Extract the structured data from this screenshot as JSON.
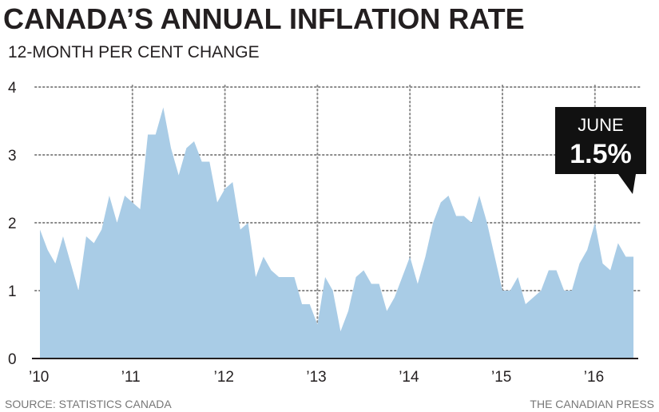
{
  "title": "CANADA’S ANNUAL INFLATION RATE",
  "subtitle": "12-MONTH PER CENT CHANGE",
  "footer": {
    "source": "SOURCE: STATISTICS CANADA",
    "credit": "THE CANADIAN PRESS"
  },
  "colors": {
    "area": "#a9cce6",
    "text": "#231f20",
    "callout_bg": "#111111",
    "callout_text": "#ffffff",
    "grid": "#8a8a8a"
  },
  "callout": {
    "month": "JUNE",
    "value": "1.5%"
  },
  "chart_data": {
    "type": "area",
    "title": "CANADA’S ANNUAL INFLATION RATE",
    "subtitle": "12-MONTH PER CENT CHANGE",
    "xlabel": "",
    "ylabel": "",
    "ylim": [
      0,
      4
    ],
    "yticks": [
      "0",
      "1",
      "2",
      "3",
      "4"
    ],
    "xticks": [
      "’10",
      "’11",
      "’12",
      "’13",
      "’14",
      "’15",
      "’16"
    ],
    "grid": true,
    "start": "2010-01",
    "end": "2016-06",
    "series": [
      {
        "name": "12-month per cent change",
        "values": [
          1.9,
          1.6,
          1.4,
          1.8,
          1.4,
          1.0,
          1.8,
          1.7,
          1.9,
          2.4,
          2.0,
          2.4,
          2.3,
          2.2,
          3.3,
          3.3,
          3.7,
          3.1,
          2.7,
          3.1,
          3.2,
          2.9,
          2.9,
          2.3,
          2.5,
          2.6,
          1.9,
          2.0,
          1.2,
          1.5,
          1.3,
          1.2,
          1.2,
          1.2,
          0.8,
          0.8,
          0.5,
          1.2,
          1.0,
          0.4,
          0.7,
          1.2,
          1.3,
          1.1,
          1.1,
          0.7,
          0.9,
          1.2,
          1.5,
          1.1,
          1.5,
          2.0,
          2.3,
          2.4,
          2.1,
          2.1,
          2.0,
          2.4,
          2.0,
          1.5,
          1.0,
          1.0,
          1.2,
          0.8,
          0.9,
          1.0,
          1.3,
          1.3,
          1.0,
          1.0,
          1.4,
          1.6,
          2.0,
          1.4,
          1.3,
          1.7,
          1.5,
          1.5
        ]
      }
    ]
  }
}
